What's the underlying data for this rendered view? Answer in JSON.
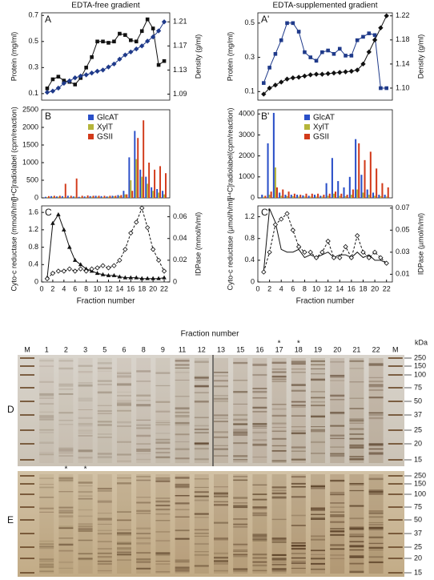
{
  "chart_data": [
    {
      "type": "line",
      "title": "EDTA-free gradient",
      "panel": "A",
      "y_label": "Protein (mg/ml)",
      "y2_label": "Density (g/ml)",
      "x": [
        1,
        2,
        3,
        4,
        5,
        6,
        7,
        8,
        9,
        10,
        11,
        12,
        13,
        14,
        15,
        16,
        17,
        18,
        19,
        20,
        21,
        22
      ],
      "xlim": [
        0,
        23
      ],
      "ylim": [
        0.05,
        0.72
      ],
      "yticks": [
        0.1,
        0.3,
        0.5,
        0.7
      ],
      "y2lim": [
        1.08,
        1.225
      ],
      "y2ticks": [
        1.09,
        1.13,
        1.17,
        1.21
      ],
      "series": [
        {
          "name": "Protein",
          "color": "#111111",
          "marker": "square",
          "values": [
            0.14,
            0.21,
            0.23,
            0.2,
            0.19,
            0.17,
            0.22,
            0.3,
            0.38,
            0.5,
            0.5,
            0.49,
            0.5,
            0.56,
            0.55,
            0.51,
            0.5,
            0.58,
            0.67,
            0.6,
            0.32,
            0.35
          ]
        },
        {
          "name": "Density",
          "color": "#1f3a8a",
          "marker": "diamond",
          "axis": "y2",
          "values": [
            1.093,
            1.095,
            1.1,
            1.108,
            1.112,
            1.117,
            1.12,
            1.122,
            1.125,
            1.128,
            1.13,
            1.135,
            1.14,
            1.148,
            1.155,
            1.16,
            1.165,
            1.17,
            1.178,
            1.185,
            1.195,
            1.21
          ]
        }
      ]
    },
    {
      "type": "line",
      "title": "EDTA-supplemented gradient",
      "panel": "A'",
      "y_label": "Protein (mg/ml)",
      "y2_label": "Density (g/ml)",
      "x": [
        1,
        2,
        3,
        4,
        5,
        6,
        7,
        8,
        9,
        10,
        11,
        12,
        13,
        14,
        15,
        16,
        17,
        18,
        19,
        20,
        21,
        22
      ],
      "xlim": [
        0,
        23
      ],
      "ylim": [
        0.05,
        0.56
      ],
      "yticks": [
        0.1,
        0.3,
        0.5
      ],
      "y2lim": [
        1.08,
        1.225
      ],
      "y2ticks": [
        {
          "value": 1.1,
          "label": "1.10"
        },
        1.14,
        1.18,
        1.22
      ],
      "series": [
        {
          "name": "Protein",
          "color": "#1f3a8a",
          "marker": "square",
          "values": [
            0.15,
            0.24,
            0.32,
            0.4,
            0.5,
            0.5,
            0.45,
            0.33,
            0.3,
            0.28,
            0.33,
            0.34,
            0.32,
            0.35,
            0.31,
            0.31,
            0.4,
            0.42,
            0.44,
            0.43,
            0.12,
            0.12
          ]
        },
        {
          "name": "Density",
          "color": "#111111",
          "marker": "diamond",
          "axis": "y2",
          "values": [
            1.09,
            1.1,
            1.105,
            1.11,
            1.115,
            1.117,
            1.118,
            1.12,
            1.122,
            1.123,
            1.123,
            1.124,
            1.125,
            1.126,
            1.127,
            1.128,
            1.13,
            1.14,
            1.16,
            1.18,
            1.2,
            1.22
          ]
        }
      ]
    },
    {
      "type": "bar",
      "panel": "B",
      "y_label": "[¹⁴C]radiolabel (cpm/reaction)",
      "x": [
        1,
        2,
        3,
        4,
        5,
        6,
        7,
        8,
        9,
        10,
        11,
        12,
        13,
        14,
        15,
        16,
        17,
        18,
        19,
        20,
        21,
        22
      ],
      "xlim": [
        0,
        23
      ],
      "ylim": [
        0,
        2500
      ],
      "yticks": [
        0,
        500,
        1000,
        1500,
        2000,
        2500
      ],
      "series": [
        {
          "name": "GlcAT",
          "color": "#2a4fc8",
          "values": [
            30,
            50,
            40,
            50,
            60,
            40,
            30,
            40,
            50,
            60,
            50,
            40,
            60,
            80,
            200,
            1150,
            1900,
            800,
            600,
            300,
            250,
            200
          ]
        },
        {
          "name": "XylT",
          "color": "#b5b53a",
          "values": [
            20,
            30,
            30,
            20,
            20,
            30,
            20,
            20,
            30,
            30,
            20,
            30,
            40,
            50,
            100,
            500,
            1100,
            600,
            400,
            200,
            150,
            100
          ]
        },
        {
          "name": "GSII",
          "color": "#d23a1a",
          "values": [
            50,
            60,
            60,
            400,
            60,
            550,
            60,
            70,
            60,
            60,
            60,
            60,
            60,
            80,
            100,
            200,
            1700,
            2200,
            1000,
            800,
            900,
            700
          ]
        }
      ]
    },
    {
      "type": "bar",
      "panel": "B'",
      "y_label": "[¹⁴C]radiolabel(cpm/reaction)",
      "x": [
        1,
        2,
        3,
        4,
        5,
        6,
        7,
        8,
        9,
        10,
        11,
        12,
        13,
        14,
        15,
        16,
        17,
        18,
        19,
        20,
        21,
        22
      ],
      "xlim": [
        0,
        23
      ],
      "ylim": [
        0,
        4200
      ],
      "yticks": [
        0,
        1000,
        2000,
        3000,
        4000
      ],
      "series": [
        {
          "name": "GlcAT",
          "color": "#2a4fc8",
          "values": [
            150,
            2600,
            4050,
            250,
            150,
            150,
            150,
            120,
            100,
            150,
            100,
            700,
            1900,
            800,
            500,
            1000,
            2800,
            1100,
            400,
            250,
            150,
            150
          ]
        },
        {
          "name": "XylT",
          "color": "#b5b53a",
          "values": [
            50,
            150,
            1450,
            100,
            80,
            80,
            60,
            60,
            60,
            60,
            60,
            100,
            200,
            100,
            80,
            150,
            400,
            250,
            150,
            100,
            80,
            60
          ]
        },
        {
          "name": "GSII",
          "color": "#d23a1a",
          "values": [
            100,
            300,
            500,
            400,
            300,
            200,
            150,
            200,
            200,
            200,
            150,
            200,
            300,
            200,
            150,
            400,
            2600,
            1800,
            2200,
            1400,
            700,
            500
          ]
        }
      ]
    },
    {
      "type": "line",
      "panel": "C",
      "y_label": "Cyto-c reductase (mmol/h/ml)",
      "y2_label": "IDPase (mmol/h/ml)",
      "x_label": "Fraction number",
      "x": [
        1,
        2,
        3,
        4,
        5,
        6,
        7,
        8,
        9,
        10,
        11,
        12,
        13,
        14,
        15,
        16,
        17,
        18,
        19,
        20,
        21,
        22
      ],
      "xlim": [
        0,
        23
      ],
      "xticks": [
        0,
        2,
        4,
        6,
        8,
        10,
        12,
        14,
        16,
        18,
        20,
        22
      ],
      "ylim": [
        0,
        1.75
      ],
      "yticks": [
        0,
        0.4,
        0.8,
        1.2,
        1.6
      ],
      "y2lim": [
        0,
        0.07
      ],
      "y2ticks": [
        0,
        0.02,
        0.04,
        0.06
      ],
      "series": [
        {
          "name": "Cyto-c reductase",
          "color": "#111111",
          "marker": "triangle",
          "values": [
            0.1,
            1.35,
            1.55,
            1.2,
            0.8,
            0.5,
            0.4,
            0.3,
            0.25,
            0.2,
            0.17,
            0.15,
            0.15,
            0.12,
            0.1,
            0.1,
            0.1,
            0.08,
            0.08,
            0.08,
            0.08,
            0.1
          ]
        },
        {
          "name": "IDPase",
          "color": "#111111",
          "marker": "open-diamond",
          "dash": true,
          "axis": "y2",
          "values": [
            0.003,
            0.008,
            0.01,
            0.01,
            0.012,
            0.01,
            0.012,
            0.01,
            0.012,
            0.013,
            0.015,
            0.013,
            0.015,
            0.02,
            0.03,
            0.045,
            0.055,
            0.068,
            0.05,
            0.03,
            0.02,
            0.01
          ]
        }
      ]
    },
    {
      "type": "line",
      "panel": "C'",
      "y_label": "Cyto-c reductase (µmol/h/ml)",
      "y2_label": "IDPase (µmol/h/ml)",
      "x_label": "Fraction number",
      "x": [
        1,
        2,
        3,
        4,
        5,
        6,
        7,
        8,
        9,
        10,
        11,
        12,
        13,
        14,
        15,
        16,
        17,
        18,
        19,
        20,
        21,
        22
      ],
      "xlim": [
        0,
        23
      ],
      "xticks": [
        0,
        2,
        4,
        6,
        8,
        10,
        12,
        14,
        16,
        18,
        20,
        22
      ],
      "ylim": [
        0,
        1.4
      ],
      "yticks": [
        0,
        0.4,
        0.8,
        1.2
      ],
      "y2lim": [
        0.003,
        0.072
      ],
      "y2ticks": [
        0.01,
        0.03,
        0.05,
        0.07
      ],
      "series": [
        {
          "name": "Cyto-c reductase",
          "color": "#111111",
          "marker": "none",
          "values": [
            0.2,
            1.35,
            1.1,
            0.6,
            0.55,
            0.55,
            0.6,
            0.45,
            0.5,
            0.45,
            0.5,
            0.55,
            0.45,
            0.5,
            0.5,
            0.45,
            0.55,
            0.45,
            0.5,
            0.4,
            0.4,
            0.35
          ]
        },
        {
          "name": "IDPase",
          "color": "#111111",
          "marker": "open-diamond",
          "dash": true,
          "axis": "y2",
          "values": [
            0.012,
            0.03,
            0.055,
            0.06,
            0.065,
            0.05,
            0.035,
            0.03,
            0.03,
            0.025,
            0.03,
            0.04,
            0.025,
            0.025,
            0.035,
            0.025,
            0.045,
            0.03,
            0.025,
            0.03,
            0.025,
            0.02
          ]
        }
      ]
    }
  ],
  "gels": {
    "header": "Fraction number",
    "unit": "kDa",
    "marker": "*",
    "panels": [
      "D",
      "E"
    ],
    "lanes": [
      "M",
      "1",
      "2",
      "3",
      "5",
      "6",
      "8",
      "9",
      "11",
      "12",
      "13",
      "15",
      "16",
      "17",
      "18",
      "19",
      "20",
      "21",
      "22",
      "M"
    ],
    "kda": [
      250,
      150,
      100,
      75,
      50,
      37,
      25,
      20,
      15
    ]
  }
}
